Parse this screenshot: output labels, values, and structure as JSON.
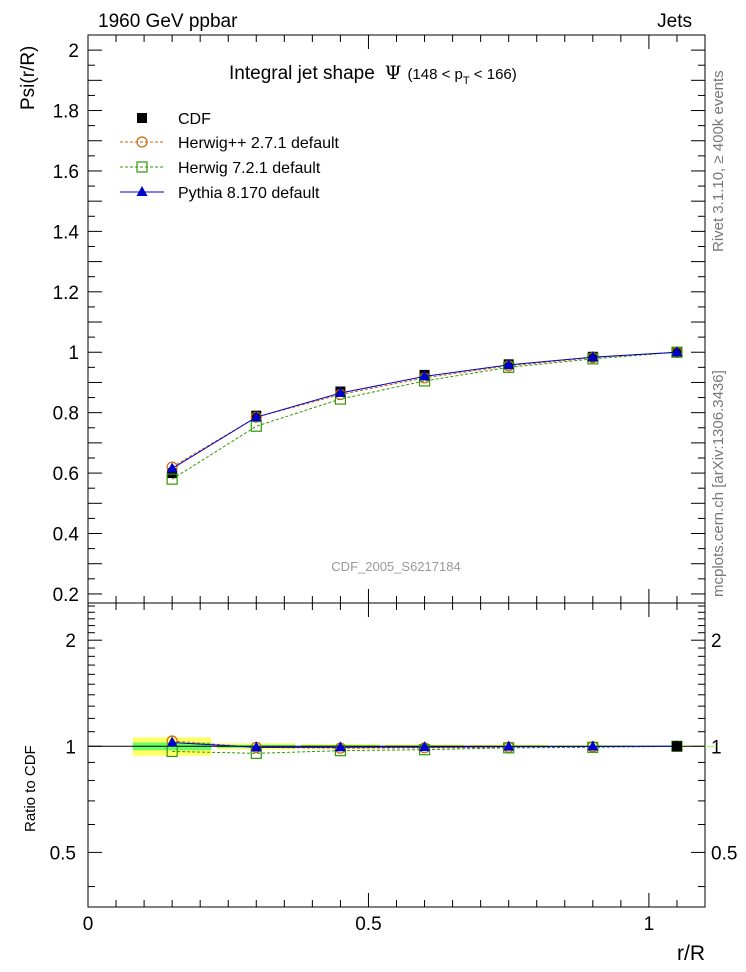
{
  "header": {
    "left": "1960 GeV ppbar",
    "right": "Jets"
  },
  "side_labels": {
    "rivet": "Rivet 3.1.10, ≥ 400k events",
    "mcplots": "mcplots.cern.ch [arXiv:1306.3436]"
  },
  "analysis_id": "CDF_2005_S6217184",
  "chart_data": [
    {
      "type": "line",
      "title_main": "Integral jet shape",
      "title_psi": "Ψ",
      "title_range_pre": "(148 < p",
      "title_range_sub": "T",
      "title_range_post": " < 166)",
      "ylabel": "Psi(r/R)",
      "xlabel": "",
      "xlim": [
        0,
        1.1
      ],
      "ylim": [
        0.17,
        2.05
      ],
      "yticks": [
        0.2,
        0.4,
        0.6,
        0.8,
        1,
        1.2,
        1.4,
        1.6,
        1.8,
        2
      ],
      "ytick_labels": [
        "0.2",
        "0.4",
        "0.6",
        "0.8",
        "1",
        "1.2",
        "1.4",
        "1.6",
        "1.8",
        "2"
      ],
      "legend_position": "top-left",
      "x": [
        0.15,
        0.3,
        0.45,
        0.6,
        0.75,
        0.9,
        1.05
      ],
      "series": [
        {
          "name": "CDF",
          "marker": "filled-square",
          "color": "#000000",
          "values": [
            0.6,
            0.79,
            0.87,
            0.925,
            0.96,
            0.985,
            1.0
          ]
        },
        {
          "name": "Herwig++ 2.7.1 default",
          "marker": "open-circle",
          "color": "#cc6600",
          "values": [
            0.62,
            0.785,
            0.86,
            0.915,
            0.955,
            0.982,
            1.0
          ]
        },
        {
          "name": "Herwig 7.2.1 default",
          "marker": "open-square",
          "color": "#339900",
          "values": [
            0.58,
            0.755,
            0.845,
            0.905,
            0.95,
            0.978,
            1.0
          ]
        },
        {
          "name": "Pythia 8.170 default",
          "marker": "filled-triangle",
          "color": "#0000cc",
          "values": [
            0.615,
            0.785,
            0.865,
            0.92,
            0.958,
            0.984,
            1.0
          ]
        }
      ]
    },
    {
      "type": "line",
      "ylabel": "Ratio to CDF",
      "xlabel": "r/R",
      "xlim": [
        0,
        1.1
      ],
      "ylim": [
        0.35,
        2.55
      ],
      "log_y": true,
      "yticks": [
        0.5,
        1,
        2
      ],
      "ytick_labels": [
        "0.5",
        "1",
        "2"
      ],
      "xticks": [
        0,
        0.5,
        1
      ],
      "xtick_labels": [
        "0",
        "0.5",
        "1"
      ],
      "x": [
        0.15,
        0.3,
        0.45,
        0.6,
        0.75,
        0.9,
        1.05
      ],
      "band_inner": [
        0.025,
        0.01,
        0.008,
        0.006,
        0.005,
        0.003,
        0.002
      ],
      "band_outer": [
        0.06,
        0.02,
        0.015,
        0.012,
        0.01,
        0.006,
        0.003
      ],
      "series": [
        {
          "name": "Herwig++ 2.7.1 default",
          "values": [
            1.035,
            0.993,
            0.988,
            0.99,
            0.994,
            0.997,
            1.0
          ]
        },
        {
          "name": "Herwig 7.2.1 default",
          "values": [
            0.967,
            0.955,
            0.972,
            0.978,
            0.99,
            0.993,
            1.0
          ]
        },
        {
          "name": "Pythia 8.170 default",
          "values": [
            1.025,
            0.993,
            0.994,
            0.995,
            0.998,
            0.999,
            1.0
          ]
        }
      ]
    }
  ]
}
